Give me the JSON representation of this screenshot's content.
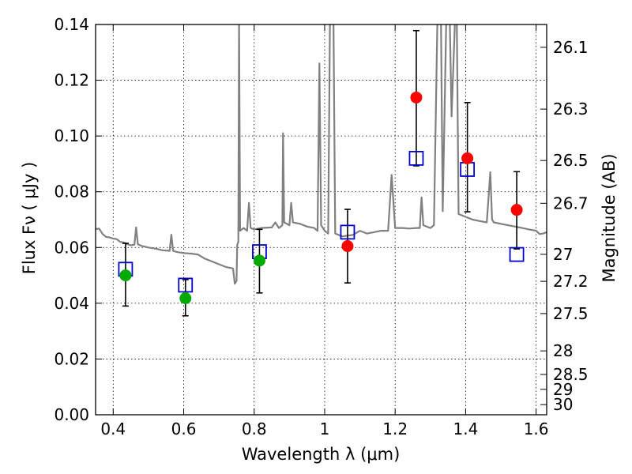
{
  "chart_data": {
    "type": "scatter",
    "title": "",
    "xlabel": "Wavelength  λ (μm)",
    "ylabel": "Flux  Fν  ( μJy )",
    "y2label": "Magnitude (AB)",
    "xlim": [
      0.35,
      1.63
    ],
    "ylim": [
      0.0,
      0.14
    ],
    "grid": true,
    "x_ticks": [
      0.4,
      0.6,
      0.8,
      1.0,
      1.2,
      1.4,
      1.6
    ],
    "x_tick_labels": [
      "0.4",
      "0.6",
      "0.8",
      "1",
      "1.2",
      "1.4",
      "1.6"
    ],
    "y_ticks": [
      0.0,
      0.02,
      0.04,
      0.06,
      0.08,
      0.1,
      0.12,
      0.14
    ],
    "y_tick_labels": [
      "0.00",
      "0.02",
      "0.04",
      "0.06",
      "0.08",
      "0.10",
      "0.12",
      "0.14"
    ],
    "y2_ticks": [
      26.1,
      26.3,
      26.5,
      26.7,
      27.0,
      27.2,
      27.5,
      28.0,
      28.5,
      29.0,
      30.0
    ],
    "y2_tick_labels": [
      "26.1",
      "26.3",
      "26.5",
      "26.7",
      "27",
      "27.2",
      "27.5",
      "28",
      "28.5",
      "29",
      "30"
    ],
    "colors": {
      "spectrum": "#808080",
      "optical": "#00aa00",
      "infrared": "#ff0000",
      "model": "#0000cc",
      "errorbar": "#000000"
    },
    "series": [
      {
        "name": "spectrum",
        "kind": "line",
        "points": [
          [
            0.35,
            0.0666
          ],
          [
            0.36,
            0.0668
          ],
          [
            0.37,
            0.0648
          ],
          [
            0.38,
            0.0638
          ],
          [
            0.39,
            0.0636
          ],
          [
            0.4,
            0.0632
          ],
          [
            0.41,
            0.063
          ],
          [
            0.42,
            0.062
          ],
          [
            0.43,
            0.0618
          ],
          [
            0.44,
            0.0612
          ],
          [
            0.45,
            0.0608
          ],
          [
            0.46,
            0.061
          ],
          [
            0.465,
            0.0672
          ],
          [
            0.47,
            0.0612
          ],
          [
            0.48,
            0.0606
          ],
          [
            0.5,
            0.06
          ],
          [
            0.52,
            0.0596
          ],
          [
            0.54,
            0.059
          ],
          [
            0.56,
            0.0588
          ],
          [
            0.565,
            0.0646
          ],
          [
            0.57,
            0.0588
          ],
          [
            0.58,
            0.0584
          ],
          [
            0.6,
            0.058
          ],
          [
            0.62,
            0.0578
          ],
          [
            0.64,
            0.0575
          ],
          [
            0.66,
            0.056
          ],
          [
            0.68,
            0.055
          ],
          [
            0.7,
            0.054
          ],
          [
            0.72,
            0.053
          ],
          [
            0.74,
            0.0525
          ],
          [
            0.745,
            0.047
          ],
          [
            0.75,
            0.048
          ],
          [
            0.752,
            0.061
          ],
          [
            0.755,
            0.062
          ],
          [
            0.757,
            0.142
          ],
          [
            0.76,
            0.066
          ],
          [
            0.77,
            0.067
          ],
          [
            0.78,
            0.066
          ],
          [
            0.785,
            0.076
          ],
          [
            0.79,
            0.067
          ],
          [
            0.8,
            0.0665
          ],
          [
            0.82,
            0.067
          ],
          [
            0.85,
            0.0672
          ],
          [
            0.86,
            0.069
          ],
          [
            0.87,
            0.067
          ],
          [
            0.88,
            0.068
          ],
          [
            0.882,
            0.101
          ],
          [
            0.885,
            0.069
          ],
          [
            0.9,
            0.068
          ],
          [
            0.905,
            0.076
          ],
          [
            0.91,
            0.069
          ],
          [
            0.93,
            0.0685
          ],
          [
            0.95,
            0.0675
          ],
          [
            0.97,
            0.067
          ],
          [
            0.98,
            0.066
          ],
          [
            0.985,
            0.126
          ],
          [
            0.99,
            0.068
          ],
          [
            1.0,
            0.066
          ],
          [
            1.01,
            0.065
          ],
          [
            1.015,
            0.142
          ],
          [
            1.025,
            0.142
          ],
          [
            1.03,
            0.065
          ],
          [
            1.05,
            0.064
          ],
          [
            1.08,
            0.0645
          ],
          [
            1.1,
            0.066
          ],
          [
            1.12,
            0.065
          ],
          [
            1.14,
            0.0655
          ],
          [
            1.16,
            0.066
          ],
          [
            1.18,
            0.066
          ],
          [
            1.19,
            0.086
          ],
          [
            1.2,
            0.067
          ],
          [
            1.22,
            0.067
          ],
          [
            1.24,
            0.0668
          ],
          [
            1.26,
            0.067
          ],
          [
            1.27,
            0.067
          ],
          [
            1.275,
            0.078
          ],
          [
            1.28,
            0.068
          ],
          [
            1.3,
            0.067
          ],
          [
            1.31,
            0.068
          ],
          [
            1.32,
            0.142
          ],
          [
            1.33,
            0.142
          ],
          [
            1.335,
            0.073
          ],
          [
            1.345,
            0.142
          ],
          [
            1.355,
            0.142
          ],
          [
            1.36,
            0.107
          ],
          [
            1.37,
            0.142
          ],
          [
            1.375,
            0.142
          ],
          [
            1.38,
            0.072
          ],
          [
            1.4,
            0.071
          ],
          [
            1.42,
            0.07
          ],
          [
            1.44,
            0.0695
          ],
          [
            1.46,
            0.069
          ],
          [
            1.47,
            0.087
          ],
          [
            1.475,
            0.07
          ],
          [
            1.48,
            0.069
          ],
          [
            1.5,
            0.0685
          ],
          [
            1.52,
            0.068
          ],
          [
            1.54,
            0.0675
          ],
          [
            1.56,
            0.067
          ],
          [
            1.58,
            0.0665
          ],
          [
            1.6,
            0.066
          ],
          [
            1.61,
            0.0648
          ],
          [
            1.62,
            0.065
          ],
          [
            1.63,
            0.0655
          ]
        ]
      },
      {
        "name": "optical",
        "kind": "marker-circle",
        "points": [
          [
            0.435,
            0.05
          ],
          [
            0.605,
            0.0418
          ],
          [
            0.815,
            0.0553
          ]
        ]
      },
      {
        "name": "infrared",
        "kind": "marker-circle",
        "points": [
          [
            1.065,
            0.0605
          ],
          [
            1.26,
            0.1138
          ],
          [
            1.405,
            0.092
          ],
          [
            1.545,
            0.0735
          ]
        ]
      },
      {
        "name": "model",
        "kind": "marker-square",
        "points": [
          [
            0.435,
            0.0522
          ],
          [
            0.605,
            0.0465
          ],
          [
            0.815,
            0.0585
          ],
          [
            1.065,
            0.0655
          ],
          [
            1.26,
            0.092
          ],
          [
            1.405,
            0.088
          ],
          [
            1.545,
            0.0575
          ]
        ]
      },
      {
        "name": "errorbars",
        "kind": "errorbar",
        "points": [
          [
            0.435,
            0.039,
            0.0615
          ],
          [
            0.605,
            0.0355,
            0.0485
          ],
          [
            0.815,
            0.0437,
            0.0665
          ],
          [
            1.065,
            0.0473,
            0.0737
          ],
          [
            1.26,
            0.0893,
            0.1378
          ],
          [
            1.405,
            0.0728,
            0.112
          ],
          [
            1.545,
            0.0595,
            0.0872
          ]
        ]
      }
    ]
  }
}
